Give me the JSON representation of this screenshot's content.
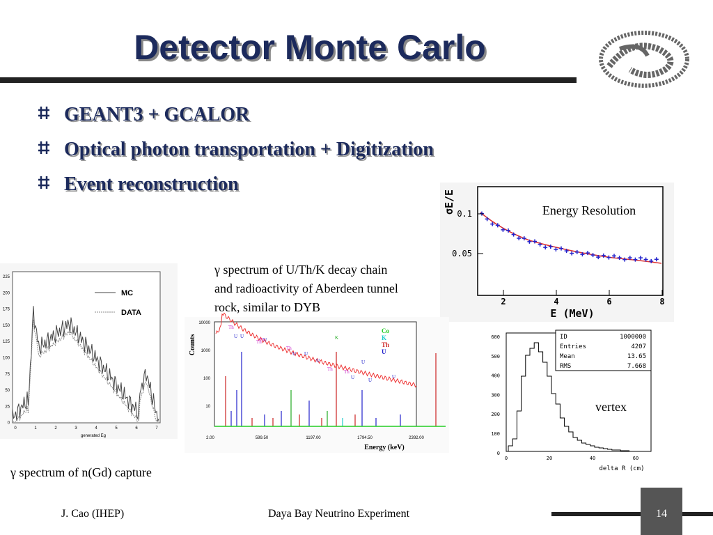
{
  "title": "Detector Monte Carlo",
  "bullets": [
    "GEANT3 + GCALOR",
    "Optical photon transportation + Digitization",
    "Event reconstruction"
  ],
  "figures": {
    "resolution": {
      "legend": "Energy Resolution",
      "y_label": "σE/E",
      "x_label": "E (MeV)",
      "yticks": [
        "0.1",
        "0.05"
      ],
      "xticks": [
        "2",
        "4",
        "6",
        "8"
      ]
    },
    "gd_capture": {
      "caption": "γ spectrum of n(Gd) capture",
      "x_label": "generated Eg",
      "legend": [
        "MC",
        "DATA"
      ],
      "yticks": [
        "225",
        "200",
        "175",
        "150",
        "125",
        "100",
        "75",
        "50",
        "25",
        "0"
      ],
      "xticks": [
        "0",
        "1",
        "2",
        "3",
        "4",
        "5",
        "6",
        "7"
      ]
    },
    "uthk": {
      "caption": [
        "γ spectrum of U/Th/K decay chain",
        "and radioactivity of Aberdeen tunnel",
        "rock, similar to DYB"
      ],
      "y_label": "Counts",
      "x_label": "Energy (keV)",
      "yticks": [
        "10000",
        "1000",
        "100",
        "10"
      ],
      "xticks": [
        "2.00",
        "599.50",
        "1197.00",
        "1794.50",
        "2392.00"
      ],
      "legend": [
        "Co",
        "K",
        "Th",
        "U"
      ],
      "peak_labels": [
        "Th",
        "U",
        "U",
        "Th",
        "U",
        "Th",
        "Th",
        "U",
        "K",
        "U",
        "U",
        "Th",
        "Th",
        "U",
        "U",
        "U",
        "U"
      ]
    },
    "vertex": {
      "label": "vertex",
      "stats": [
        [
          "ID",
          "1000000"
        ],
        [
          "Entries",
          "4207"
        ],
        [
          "Mean",
          "13.65"
        ],
        [
          "RMS",
          "7.668"
        ]
      ],
      "x_label": "delta R (cm)",
      "yticks": [
        "600",
        "500",
        "400",
        "300",
        "200",
        "100",
        "0"
      ],
      "xticks": [
        "0",
        "20",
        "40",
        "60"
      ]
    }
  },
  "footer": {
    "author": "J. Cao (IHEP)",
    "event": "Daya Bay Neutrino Experiment",
    "page": "14"
  }
}
